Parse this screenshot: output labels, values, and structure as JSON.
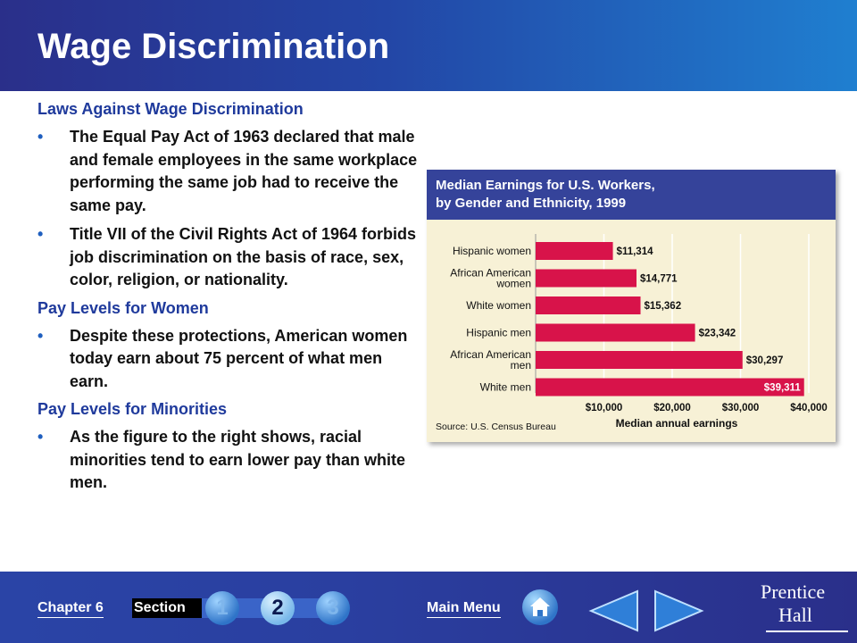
{
  "slide": {
    "title": "Wage Discrimination",
    "sections": [
      {
        "heading": "Laws Against Wage Discrimination",
        "bullets": [
          "The Equal Pay Act of 1963 declared that male and female employees in the same workplace performing the same job had to receive the same pay.",
          "Title VII of the Civil Rights Act of 1964 forbids job discrimination on the basis of race, sex, color, religion, or nationality."
        ]
      },
      {
        "heading": "Pay Levels for Women",
        "bullets": [
          "Despite these protections, American women today earn about 75 percent of what men earn."
        ]
      },
      {
        "heading": "Pay Levels for Minorities",
        "bullets": [
          "As the figure to the right shows, racial minorities tend to earn lower pay than white men."
        ]
      }
    ],
    "bullet_char": "•"
  },
  "chart_data": {
    "type": "bar",
    "orientation": "horizontal",
    "title_line1": "Median Earnings for U.S. Workers,",
    "title_line2": "by Gender and Ethnicity, 1999",
    "categories": [
      [
        "Hispanic women"
      ],
      [
        "African American",
        "women"
      ],
      [
        "White women"
      ],
      [
        "Hispanic men"
      ],
      [
        "African American",
        "men"
      ],
      [
        "White men"
      ]
    ],
    "values": [
      11314,
      14771,
      15362,
      23342,
      30297,
      39311
    ],
    "value_labels": [
      "$11,314",
      "$14,771",
      "$15,362",
      "$23,342",
      "$30,297",
      "$39,311"
    ],
    "xlim": [
      0,
      40000
    ],
    "ticks": [
      10000,
      20000,
      30000,
      40000
    ],
    "tick_labels": [
      "$10,000",
      "$20,000",
      "$30,000",
      "$40,000"
    ],
    "xlabel": "Median annual earnings",
    "source": "Source: U.S. Census Bureau",
    "grid": true,
    "bar_color": "#d8134a",
    "header_color": "#35439a"
  },
  "footer": {
    "chapter_label": "Chapter 6",
    "section_label": "Section",
    "section_buttons": [
      "1",
      "2",
      "3"
    ],
    "active_section": "2",
    "main_menu_label": "Main Menu",
    "brand_line1": "Prentice",
    "brand_line2": "Hall",
    "icons": {
      "home": "home-icon",
      "previous": "arrow-left-icon",
      "next": "arrow-right-icon"
    }
  }
}
